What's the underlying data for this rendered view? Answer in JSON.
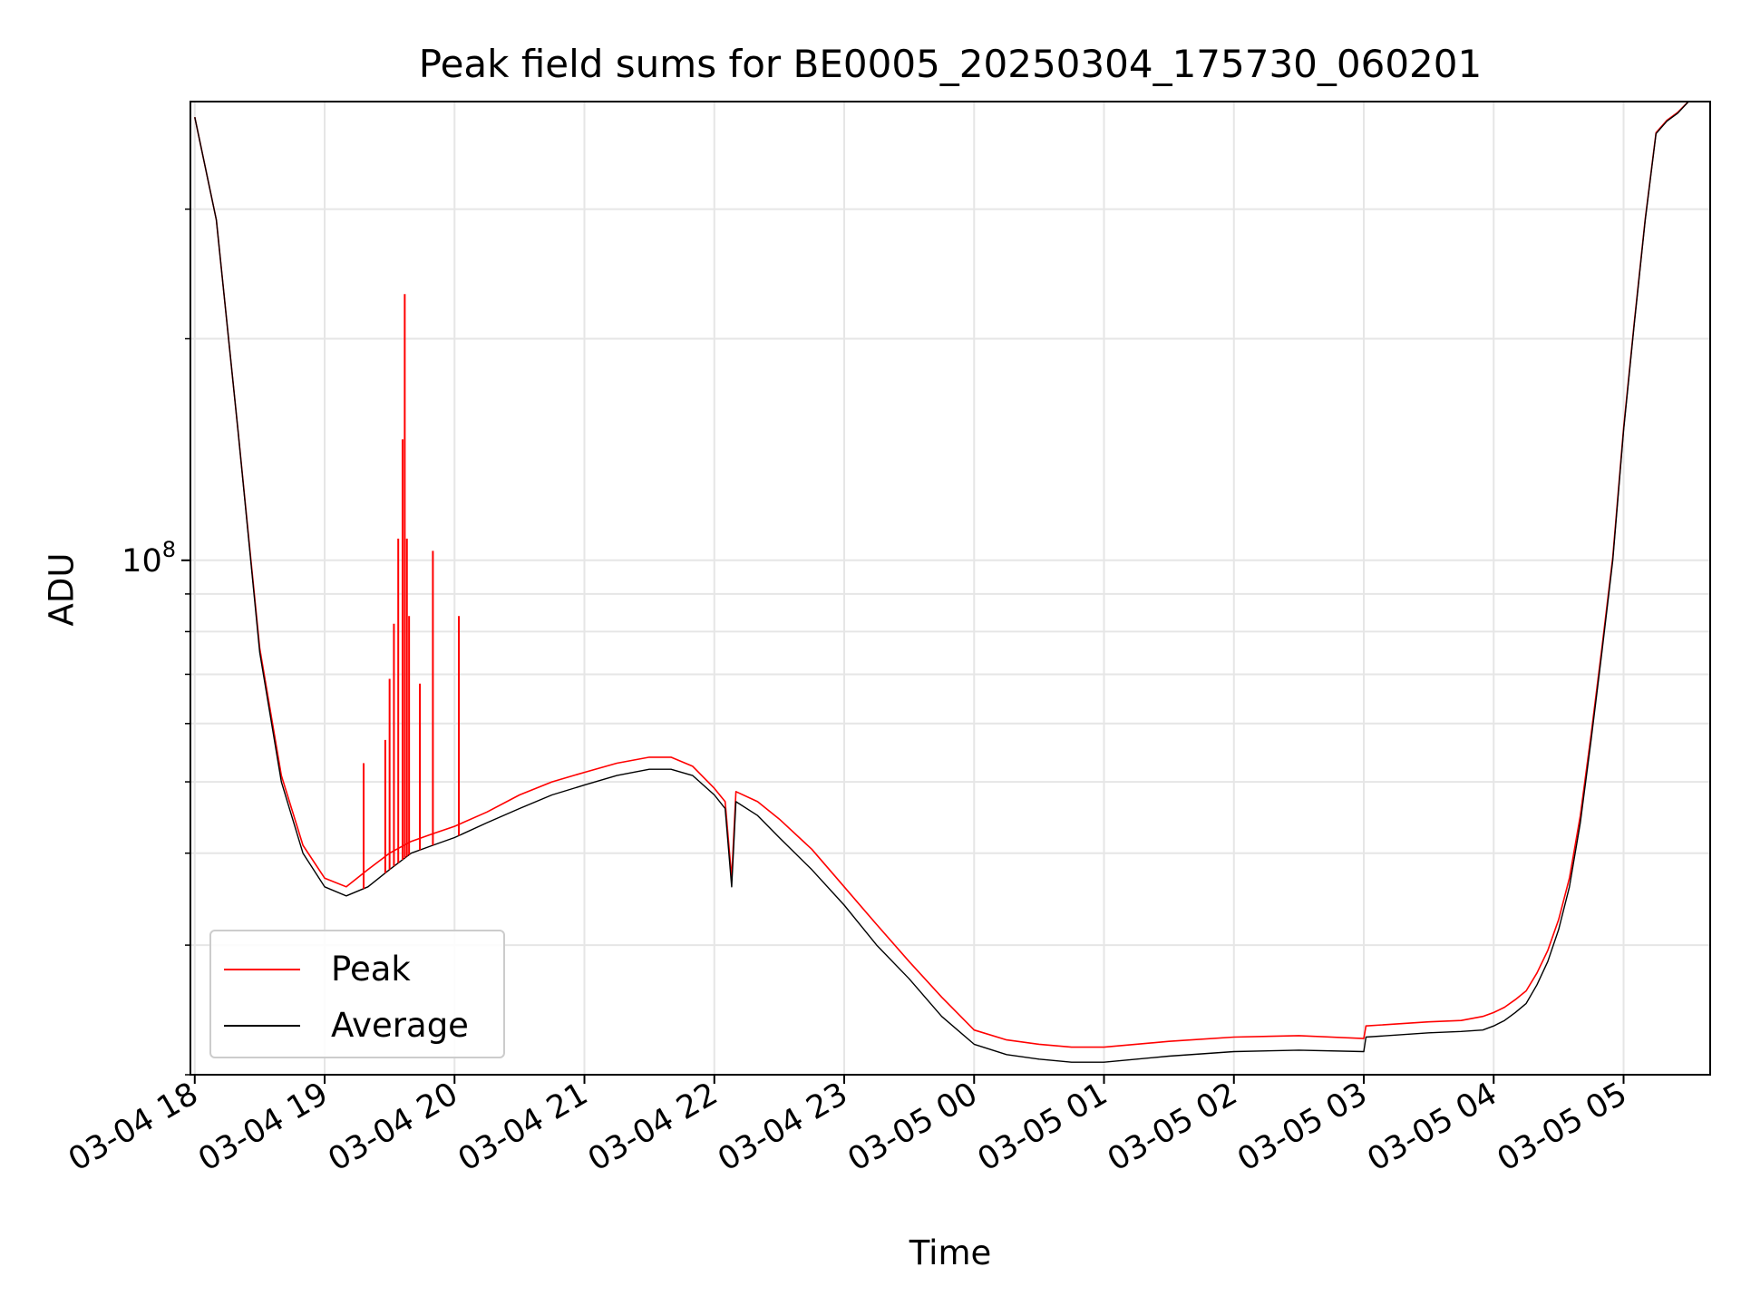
{
  "chart_data": {
    "type": "line",
    "title": "Peak field sums for BE0005_20250304_175730_060201",
    "xlabel": "Time",
    "ylabel": "ADU",
    "yscale": "log",
    "ylim": [
      20000000,
      420000000
    ],
    "xlim": [
      "03-04 17:58",
      "03-05 05:40"
    ],
    "grid": true,
    "legend_position": "lower-left",
    "x_ticks": [
      "03-04 18",
      "03-04 19",
      "03-04 20",
      "03-04 21",
      "03-04 22",
      "03-04 23",
      "03-05 00",
      "03-05 01",
      "03-05 02",
      "03-05 03",
      "03-05 04",
      "03-05 05"
    ],
    "y_tick_labels": [
      {
        "value": 100000000,
        "base": "10",
        "exponent": "8"
      }
    ],
    "y_ticks_minor": [
      20000000,
      30000000,
      40000000,
      50000000,
      60000000,
      70000000,
      80000000,
      90000000,
      200000000,
      300000000
    ],
    "x": [
      "03-04 18:00",
      "03-04 18:10",
      "03-04 18:20",
      "03-04 18:30",
      "03-04 18:40",
      "03-04 18:50",
      "03-04 19:00",
      "03-04 19:10",
      "03-04 19:20",
      "03-04 19:30",
      "03-04 19:40",
      "03-04 19:50",
      "03-04 20:00",
      "03-04 20:15",
      "03-04 20:30",
      "03-04 20:45",
      "03-04 21:00",
      "03-04 21:15",
      "03-04 21:30",
      "03-04 21:40",
      "03-04 21:50",
      "03-04 22:00",
      "03-04 22:05",
      "03-04 22:08",
      "03-04 22:10",
      "03-04 22:20",
      "03-04 22:30",
      "03-04 22:45",
      "03-04 23:00",
      "03-04 23:15",
      "03-04 23:30",
      "03-04 23:45",
      "03-05 00:00",
      "03-05 00:15",
      "03-05 00:30",
      "03-05 00:45",
      "03-05 01:00",
      "03-05 01:30",
      "03-05 02:00",
      "03-05 02:30",
      "03-05 03:00",
      "03-05 03:01",
      "03-05 03:30",
      "03-05 03:45",
      "03-05 03:55",
      "03-05 04:00",
      "03-05 04:05",
      "03-05 04:10",
      "03-05 04:15",
      "03-05 04:20",
      "03-05 04:25",
      "03-05 04:30",
      "03-05 04:35",
      "03-05 04:40",
      "03-05 04:45",
      "03-05 04:50",
      "03-05 04:55",
      "03-05 05:00",
      "03-05 05:05",
      "03-05 05:10",
      "03-05 05:15",
      "03-05 05:20",
      "03-05 05:25",
      "03-05 05:30",
      "03-05 05:35",
      "03-05 05:40"
    ],
    "series": [
      {
        "name": "Average",
        "color": "#000000",
        "values": [
          400000000,
          290000000,
          150000000,
          75000000,
          50000000,
          40000000,
          36000000,
          35000000,
          36000000,
          38000000,
          40000000,
          41000000,
          42000000,
          44000000,
          46000000,
          48000000,
          49500000,
          51000000,
          52000000,
          52000000,
          51000000,
          48000000,
          46000000,
          36000000,
          47000000,
          45000000,
          42000000,
          38000000,
          34000000,
          30000000,
          27000000,
          24000000,
          22000000,
          21300000,
          21000000,
          20800000,
          20800000,
          21200000,
          21500000,
          21600000,
          21500000,
          22500000,
          22800000,
          22900000,
          23000000,
          23300000,
          23700000,
          24300000,
          25000000,
          26500000,
          28500000,
          31500000,
          36000000,
          44000000,
          57000000,
          75000000,
          100000000,
          150000000,
          210000000,
          290000000,
          380000000,
          395000000,
          405000000,
          420000000,
          420000000,
          420000000
        ]
      },
      {
        "name": "Peak",
        "color": "#ff0000",
        "values": [
          400000000,
          290000000,
          150000000,
          76000000,
          51000000,
          41000000,
          37000000,
          36000000,
          38000000,
          40000000,
          41500000,
          42500000,
          43500000,
          45500000,
          48000000,
          50000000,
          51500000,
          53000000,
          54000000,
          54000000,
          52500000,
          49000000,
          47000000,
          37000000,
          48500000,
          47000000,
          44500000,
          40500000,
          36000000,
          32000000,
          28500000,
          25500000,
          23000000,
          22300000,
          22000000,
          21800000,
          21800000,
          22200000,
          22500000,
          22600000,
          22400000,
          23300000,
          23600000,
          23700000,
          24000000,
          24300000,
          24700000,
          25300000,
          26000000,
          27500000,
          29500000,
          32500000,
          37000000,
          45000000,
          58000000,
          76000000,
          101000000,
          151000000,
          211000000,
          291000000,
          381000000,
          396000000,
          406000000,
          420000000,
          420000000,
          420000000
        ]
      }
    ],
    "peak_spikes": [
      {
        "x": "03-04 19:18",
        "y": 53000000
      },
      {
        "x": "03-04 19:28",
        "y": 57000000
      },
      {
        "x": "03-04 19:30",
        "y": 69000000
      },
      {
        "x": "03-04 19:32",
        "y": 82000000
      },
      {
        "x": "03-04 19:34",
        "y": 107000000
      },
      {
        "x": "03-04 19:36",
        "y": 146000000
      },
      {
        "x": "03-04 19:37",
        "y": 230000000
      },
      {
        "x": "03-04 19:38",
        "y": 107000000
      },
      {
        "x": "03-04 19:39",
        "y": 84000000
      },
      {
        "x": "03-04 19:44",
        "y": 68000000
      },
      {
        "x": "03-04 19:50",
        "y": 103000000
      },
      {
        "x": "03-04 20:02",
        "y": 84000000
      }
    ]
  }
}
